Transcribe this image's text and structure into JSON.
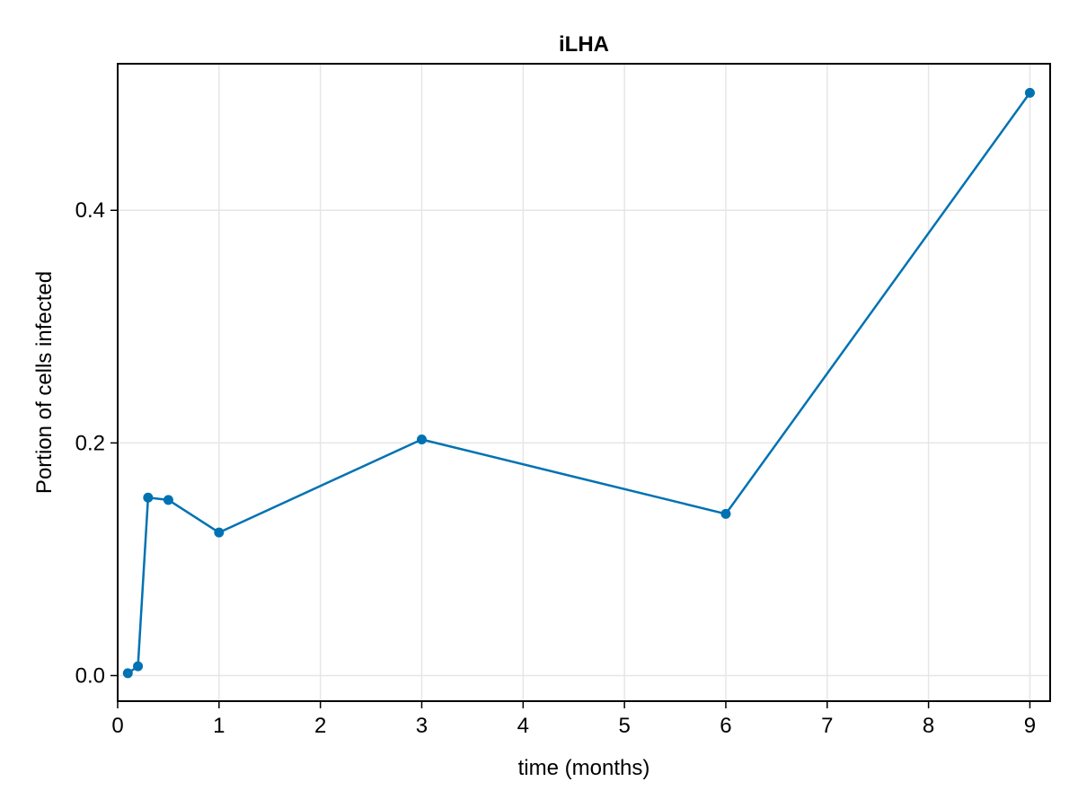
{
  "chart_data": {
    "type": "line",
    "title": "iLHA",
    "xlabel": "time (months)",
    "ylabel": "Portion of cells infected",
    "xlim": [
      0,
      9.2
    ],
    "ylim": [
      -0.022,
      0.526
    ],
    "xticks": [
      0,
      1,
      2,
      3,
      4,
      5,
      6,
      7,
      8,
      9
    ],
    "yticks": [
      0.0,
      0.2,
      0.4
    ],
    "xtick_labels": [
      "0",
      "1",
      "2",
      "3",
      "4",
      "5",
      "6",
      "7",
      "8",
      "9"
    ],
    "ytick_labels": [
      "0.0",
      "0.2",
      "0.4"
    ],
    "grid": true,
    "legend": "none",
    "series": [
      {
        "color": "#0072b2",
        "marker": "circle",
        "x": [
          0.1,
          0.2,
          0.3,
          0.5,
          1,
          3,
          6,
          9
        ],
        "y": [
          0.002,
          0.008,
          0.153,
          0.151,
          0.123,
          0.203,
          0.139,
          0.501
        ]
      }
    ]
  },
  "colors": {
    "line": "#0072b2",
    "grid": "#e6e6e6",
    "frame": "#000000",
    "background": "#ffffff"
  }
}
